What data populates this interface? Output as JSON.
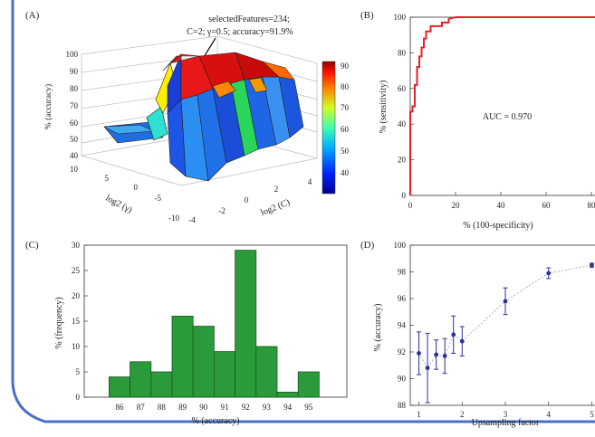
{
  "colors": {
    "frame": "#4a6fc2",
    "roc": "#e8202a",
    "hist": "#2a9a3a",
    "hist_edge": "#1a5a22",
    "upsample": "#2b2f9a"
  },
  "panels": {
    "a": {
      "label": "(A)",
      "annotation": [
        "selectedFeatures=234;",
        "C=2; γ=0.5; accuracy=91.9%"
      ],
      "zlabel": "% (accuracy)",
      "xlabel": "log2 (γ)",
      "ylabel": "log2 (C)",
      "z_ticks": [
        "40",
        "50",
        "60",
        "70",
        "80",
        "90",
        "100"
      ],
      "gamma_ticks": [
        "10",
        "5",
        "0",
        "-5",
        "-10"
      ],
      "c_ticks": [
        "-4",
        "-2",
        "0",
        "2",
        "4"
      ],
      "colorbar_ticks": [
        "90",
        "80",
        "70",
        "60",
        "50",
        "40"
      ]
    },
    "b": {
      "label": "(B)",
      "auc_text": "AUC = 0.970",
      "xlabel": "% (100-specificity)",
      "ylabel": "% (sensitivity)",
      "x_ticks": [
        "0",
        "20",
        "40",
        "60",
        "80",
        "100"
      ],
      "y_ticks": [
        "0",
        "20",
        "40",
        "60",
        "80",
        "100"
      ]
    },
    "c": {
      "label": "(C)",
      "xlabel": "% (accuracy)",
      "ylabel": "% (frequency)",
      "y_ticks": [
        "0",
        "5",
        "10",
        "15",
        "20",
        "25",
        "30"
      ]
    },
    "d": {
      "label": "(D)",
      "xlabel": "Upsampling factor",
      "ylabel": "% (accuracy)",
      "x_ticks": [
        "1",
        "2",
        "3",
        "4",
        "5"
      ],
      "y_ticks": [
        "88",
        "90",
        "92",
        "94",
        "96",
        "98",
        "100"
      ]
    }
  },
  "chart_data": [
    {
      "type": "heatmap",
      "title": "",
      "xlabel": "log2 (γ)",
      "ylabel": "log2 (C)",
      "zlabel": "% (accuracy)",
      "zlim": [
        40,
        100
      ],
      "best_point": {
        "C": 2,
        "gamma": 0.5,
        "accuracy": 91.9,
        "selectedFeatures": 234
      }
    },
    {
      "type": "line",
      "title": "",
      "xlabel": "% (100-specificity)",
      "ylabel": "% (sensitivity)",
      "xlim": [
        0,
        100
      ],
      "ylim": [
        0,
        100
      ],
      "x": [
        0,
        0,
        1,
        1,
        2,
        2,
        3,
        3,
        4,
        4,
        5,
        5,
        6,
        6,
        7,
        7,
        9,
        9,
        12,
        14,
        14,
        17,
        17,
        20,
        100
      ],
      "y": [
        0,
        47,
        47,
        50,
        50,
        62,
        62,
        72,
        72,
        78,
        78,
        83,
        83,
        88,
        88,
        92,
        92,
        95,
        95,
        95,
        97,
        97,
        99,
        100,
        100
      ],
      "auc": 0.97
    },
    {
      "type": "bar",
      "title": "",
      "xlabel": "% (accuracy)",
      "ylabel": "% (frequency)",
      "categories": [
        "86",
        "87",
        "88",
        "89",
        "90",
        "91",
        "92",
        "93",
        "94",
        "95"
      ],
      "values": [
        4,
        7,
        5,
        16,
        14,
        9,
        29,
        10,
        1,
        5
      ],
      "ylim": [
        0,
        30
      ]
    },
    {
      "type": "line",
      "title": "",
      "xlabel": "Upsampling factor",
      "ylabel": "% (accuracy)",
      "xlim": [
        0.8,
        5.2
      ],
      "ylim": [
        88,
        100
      ],
      "x": [
        1,
        1.2,
        1.4,
        1.6,
        1.8,
        2,
        3,
        4,
        5
      ],
      "y": [
        91.9,
        90.8,
        91.8,
        91.7,
        93.3,
        92.8,
        95.8,
        97.9,
        98.5
      ],
      "err": [
        1.6,
        2.6,
        1.1,
        1.3,
        1.4,
        1.1,
        1.0,
        0.4,
        0.15
      ]
    }
  ]
}
